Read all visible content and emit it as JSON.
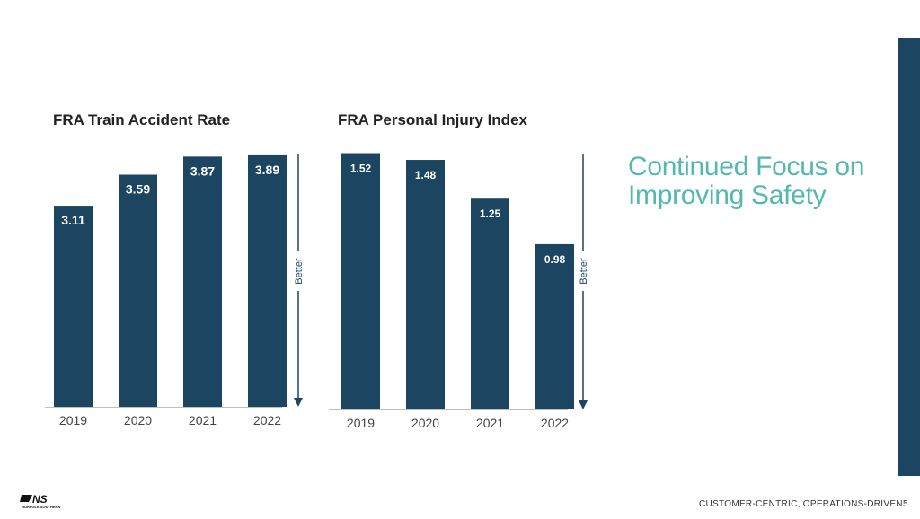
{
  "headline": [
    "Continued Focus on",
    "Improving Safety"
  ],
  "footer": {
    "tagline": "CUSTOMER-CENTRIC, OPERATIONS-DRIVEN",
    "page_number": "5",
    "logo_mark": "NS",
    "logo_text": "NORFOLK SOUTHERN"
  },
  "colors": {
    "bar": "#1b4561",
    "headline": "#53b9b0",
    "accent_bar": "#1b4561"
  },
  "chart_data": [
    {
      "type": "bar",
      "title": "FRA Train Accident Rate",
      "categories": [
        "2019",
        "2020",
        "2021",
        "2022"
      ],
      "values": [
        3.11,
        3.59,
        3.87,
        3.89
      ],
      "value_labels": [
        "3.11",
        "3.59",
        "3.87",
        "3.89"
      ],
      "ylim": [
        0,
        4.0
      ],
      "annotation": "Better",
      "grid": false
    },
    {
      "type": "bar",
      "title": "FRA Personal Injury Index",
      "categories": [
        "2019",
        "2020",
        "2021",
        "2022"
      ],
      "values": [
        1.52,
        1.48,
        1.25,
        0.98
      ],
      "value_labels": [
        "1.52",
        "1.48",
        "1.25",
        "0.98"
      ],
      "ylim": [
        0,
        1.56
      ],
      "annotation": "Better",
      "grid": false
    }
  ]
}
